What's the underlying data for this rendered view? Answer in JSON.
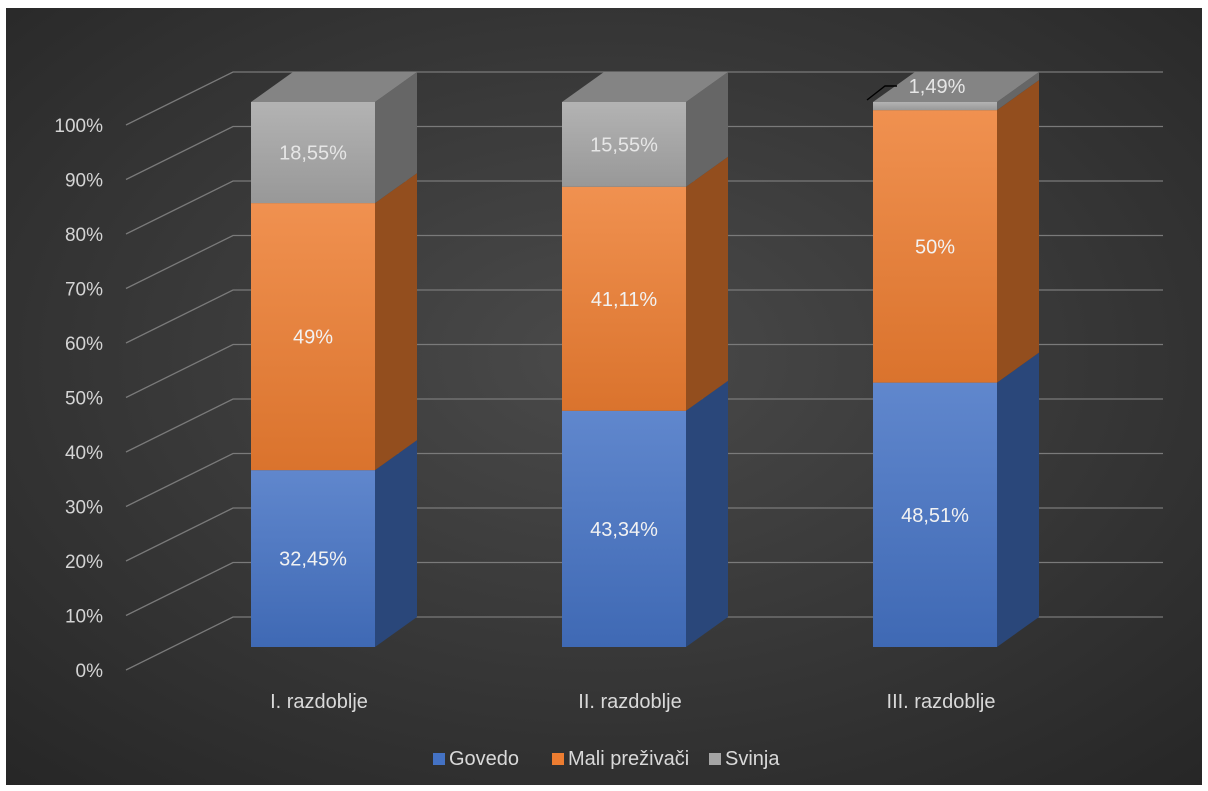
{
  "chart_data": {
    "type": "bar",
    "stacked": "percent",
    "three_d": true,
    "categories": [
      "I. razdoblje",
      "II. razdoblje",
      "III. razdoblje"
    ],
    "series": [
      {
        "name": "Govedo",
        "color": "#4472C4",
        "values": [
          32.45,
          43.34,
          48.51
        ],
        "labels": [
          "32,45%",
          "43,34%",
          "48,51%"
        ]
      },
      {
        "name": "Mali preživači",
        "color": "#ED7D31",
        "values": [
          49,
          41.11,
          50
        ],
        "labels": [
          "49%",
          "41,11%",
          "50%"
        ]
      },
      {
        "name": "Svinja",
        "color": "#A5A5A5",
        "values": [
          18.55,
          15.55,
          1.49
        ],
        "labels": [
          "18,55%",
          "15,55%",
          "1,49%"
        ]
      }
    ],
    "y_ticks": [
      "0%",
      "10%",
      "20%",
      "30%",
      "40%",
      "50%",
      "60%",
      "70%",
      "80%",
      "90%",
      "100%"
    ],
    "ylim": [
      0,
      100
    ],
    "grid": true,
    "legend_position": "bottom",
    "background": "#404040"
  }
}
